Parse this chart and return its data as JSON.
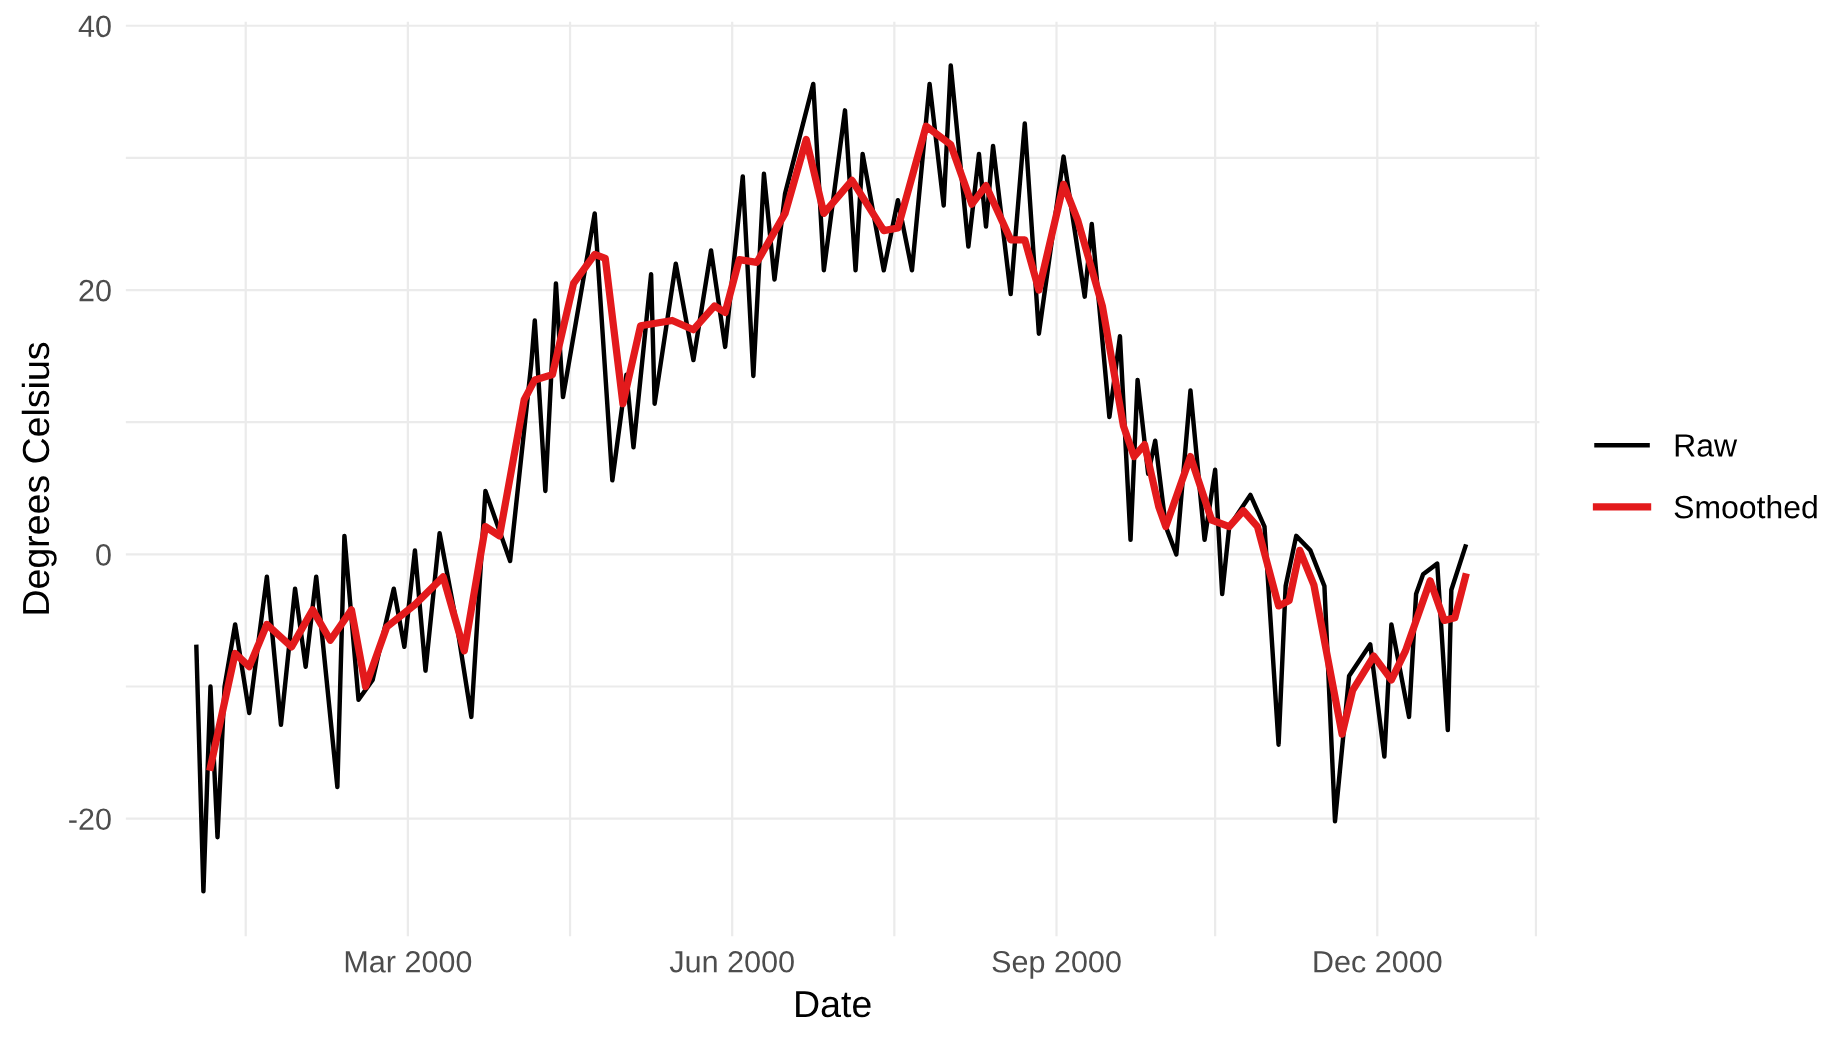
{
  "chart_data": {
    "type": "line",
    "xlabel": "Date",
    "ylabel": "Degrees Celsius",
    "xlim": [
      "1999-12-12",
      "2001-01-16"
    ],
    "ylim": [
      -28.9,
      40.3
    ],
    "xticks": [
      {
        "value": "2000-01-15",
        "label": null
      },
      {
        "value": "2000-03-01",
        "label": "Mar 2000"
      },
      {
        "value": "2000-04-16",
        "label": null
      },
      {
        "value": "2000-06-01",
        "label": "Jun 2000"
      },
      {
        "value": "2000-07-17",
        "label": null
      },
      {
        "value": "2000-09-01",
        "label": "Sep 2000"
      },
      {
        "value": "2000-10-16",
        "label": null
      },
      {
        "value": "2000-12-01",
        "label": "Dec 2000"
      },
      {
        "value": "2001-01-15",
        "label": null
      }
    ],
    "yticks": [
      -20,
      {
        "value": -10,
        "label": null
      },
      0,
      {
        "value": 10,
        "label": null
      },
      20,
      {
        "value": 30,
        "label": null
      },
      40
    ],
    "grid": true,
    "legend": "right",
    "line_style": "solid",
    "series": [
      {
        "name": "Raw",
        "color": "#000000",
        "x": [
          "2000-01-01",
          "2000-01-03",
          "2000-01-05",
          "2000-01-07",
          "2000-01-09",
          "2000-01-12",
          "2000-01-16",
          "2000-01-21",
          "2000-01-25",
          "2000-01-29",
          "2000-02-01",
          "2000-02-04",
          "2000-02-10",
          "2000-02-12",
          "2000-02-16",
          "2000-02-20",
          "2000-02-26",
          "2000-02-29",
          "2000-03-03",
          "2000-03-06",
          "2000-03-10",
          "2000-03-15",
          "2000-03-19",
          "2000-03-23",
          "2000-03-30",
          "2000-04-05",
          "2000-04-06",
          "2000-04-09",
          "2000-04-12",
          "2000-04-14",
          "2000-04-23",
          "2000-04-28",
          "2000-05-02",
          "2000-05-04",
          "2000-05-09",
          "2000-05-10",
          "2000-05-16",
          "2000-05-21",
          "2000-05-26",
          "2000-05-30",
          "2000-06-04",
          "2000-06-07",
          "2000-06-10",
          "2000-06-13",
          "2000-06-16",
          "2000-06-24",
          "2000-06-27",
          "2000-07-03",
          "2000-07-06",
          "2000-07-08",
          "2000-07-14",
          "2000-07-18",
          "2000-07-22",
          "2000-07-27",
          "2000-07-31",
          "2000-08-02",
          "2000-08-07",
          "2000-08-10",
          "2000-08-12",
          "2000-08-14",
          "2000-08-19",
          "2000-08-23",
          "2000-08-27",
          "2000-09-03",
          "2000-09-09",
          "2000-09-11",
          "2000-09-16",
          "2000-09-19",
          "2000-09-22",
          "2000-09-24",
          "2000-09-27",
          "2000-09-29",
          "2000-10-02",
          "2000-10-05",
          "2000-10-09",
          "2000-10-13",
          "2000-10-16",
          "2000-10-18",
          "2000-10-20",
          "2000-10-26",
          "2000-10-30",
          "2000-11-03",
          "2000-11-05",
          "2000-11-08",
          "2000-11-12",
          "2000-11-16",
          "2000-11-19",
          "2000-11-23",
          "2000-11-29",
          "2000-12-03",
          "2000-12-05",
          "2000-12-10",
          "2000-12-12",
          "2000-12-14",
          "2000-12-18",
          "2000-12-21",
          "2000-12-22",
          "2000-12-26"
        ],
        "values": [
          -7.0,
          -25.5,
          -10,
          -21.4,
          -10,
          -5.3,
          -12,
          -1.7,
          -12.9,
          -2.6,
          -8.5,
          -1.7,
          -17.6,
          1.4,
          -11,
          -9.5,
          -2.6,
          -7,
          0.3,
          -8.8,
          1.6,
          -5.5,
          -12.3,
          4.8,
          -0.5,
          14.4,
          17.7,
          4.8,
          20.5,
          11.9,
          25.8,
          5.6,
          13.6,
          8.1,
          21.2,
          11.4,
          22,
          14.7,
          23,
          15.7,
          28.6,
          13.5,
          28.8,
          20.8,
          27.3,
          35.6,
          21.5,
          33.6,
          21.5,
          30.3,
          21.5,
          26.8,
          21.5,
          35.6,
          26.4,
          37,
          23.3,
          30.3,
          24.8,
          30.9,
          19.7,
          32.6,
          16.7,
          30.1,
          19.5,
          25,
          10.4,
          16.5,
          1.1,
          13.2,
          6.1,
          8.6,
          2.1,
          0,
          12.4,
          1.1,
          6.4,
          -3,
          2.1,
          4.5,
          2.1,
          -14.4,
          -2.4,
          1.4,
          0.3,
          -2.4,
          -20.2,
          -9.2,
          -6.8,
          -15.3,
          -5.3,
          -12.3,
          -3,
          -1.5,
          -0.7,
          -13.3,
          -2.7,
          0.6
        ]
      },
      {
        "name": "Smoothed",
        "color": "#e31a1c",
        "x": [
          "2000-01-05",
          "2000-01-12",
          "2000-01-16",
          "2000-01-21",
          "2000-01-28",
          "2000-02-03",
          "2000-02-08",
          "2000-02-14",
          "2000-02-18",
          "2000-02-24",
          "2000-03-03",
          "2000-03-11",
          "2000-03-17",
          "2000-03-23",
          "2000-03-27",
          "2000-04-03",
          "2000-04-06",
          "2000-04-11",
          "2000-04-17",
          "2000-04-23",
          "2000-04-26",
          "2000-05-01",
          "2000-05-06",
          "2000-05-15",
          "2000-05-21",
          "2000-05-27",
          "2000-05-30",
          "2000-06-03",
          "2000-06-08",
          "2000-06-16",
          "2000-06-22",
          "2000-06-27",
          "2000-07-05",
          "2000-07-14",
          "2000-07-18",
          "2000-07-26",
          "2000-08-02",
          "2000-08-08",
          "2000-08-12",
          "2000-08-19",
          "2000-08-23",
          "2000-08-27",
          "2000-09-03",
          "2000-09-07",
          "2000-09-14",
          "2000-09-20",
          "2000-09-23",
          "2000-09-26",
          "2000-09-30",
          "2000-10-02",
          "2000-10-09",
          "2000-10-15",
          "2000-10-20",
          "2000-10-24",
          "2000-10-28",
          "2000-11-03",
          "2000-11-06",
          "2000-11-09",
          "2000-11-13",
          "2000-11-21",
          "2000-11-24",
          "2000-11-30",
          "2000-12-05",
          "2000-12-09",
          "2000-12-16",
          "2000-12-20",
          "2000-12-23",
          "2000-12-26"
        ],
        "values": [
          -16.1,
          -7.5,
          -8.5,
          -5.3,
          -7,
          -4.2,
          -6.5,
          -4.2,
          -10,
          -5.5,
          -3.8,
          -1.7,
          -7.3,
          2.1,
          1.4,
          11.7,
          13.2,
          13.6,
          20.5,
          22.7,
          22.4,
          11.4,
          17.3,
          17.7,
          17,
          18.8,
          18.3,
          22.3,
          22.1,
          25.8,
          31.4,
          25.8,
          28.3,
          24.5,
          24.7,
          32.4,
          31,
          26.5,
          27.9,
          23.8,
          23.8,
          20,
          28,
          25.3,
          18.8,
          9.7,
          7.4,
          8.3,
          3.6,
          2.1,
          7.4,
          2.6,
          2.1,
          3.3,
          2.1,
          -3.9,
          -3.5,
          0.3,
          -2.3,
          -13.6,
          -10.3,
          -7.7,
          -9.5,
          -7.3,
          -2,
          -5,
          -4.8,
          -1.7
        ]
      }
    ]
  }
}
